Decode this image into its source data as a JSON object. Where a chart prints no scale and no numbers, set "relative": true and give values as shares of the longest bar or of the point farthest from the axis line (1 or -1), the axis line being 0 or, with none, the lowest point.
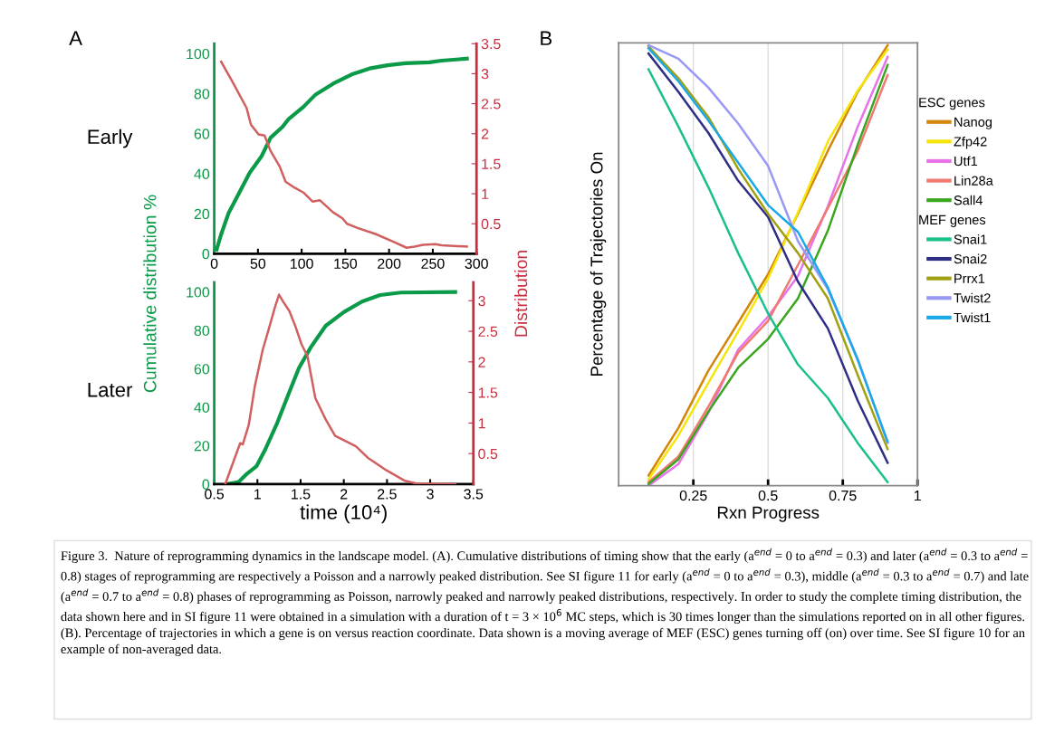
{
  "chart_data": [
    {
      "type": "line",
      "ylabel": "Cumulative distribution %",
      "y2label": "Distribution",
      "xlim": [
        0,
        300
      ],
      "xticks": [
        0,
        50,
        100,
        150,
        200,
        250,
        300
      ],
      "ylim": [
        0,
        105
      ],
      "yticks": [
        0,
        20,
        40,
        60,
        80,
        100
      ],
      "y2lim": [
        0,
        3.5
      ],
      "y2ticks": [
        0.5,
        1,
        1.5,
        2,
        2.5,
        3,
        3.5
      ],
      "annotations": [
        "A",
        "Early",
        "Figure 3.  Nature of reprogramming dynamics in the landscape model. (A). Cumulative distributions of timing show that the early (a$^{end}$ = 0 to a$^{end}$ = 0.3) and later (a$^{end}$ = 0.3 to a$^{end}$ = 0.8) stages of reprogramming are respectively a Poisson and a narrowly peaked distribution. See SI figure 11 for early (a$^{end}$ = 0 to a$^{end}$ = 0.3), middle (a$^{end}$ = 0.3 to a$^{end}$ = 0.7) and late (a$^{end}$ = 0.7 to a$^{end}$ = 0.8) phases of reprogramming as Poisson, narrowly peaked and narrowly peaked distributions, respectively. In order to study the complete timing distribution, the data shown here and in SI figure 11 were obtained in a simulation with a duration of t = 3 × 10$^{6}$ MC steps, which is 30 times longer than the simulations reported on in all other figures. (B). Percentage of trajectories in which a gene is on versus reaction coordinate. Data shown is a moving average of MEF (ESC) genes turning off (on) over time. See SI figure 10 for an example of non-averaged data."
      ],
      "series": [
        {
          "color": "#0a9a48",
          "x": [
            2.7,
            7.9,
            16.5,
            26.7,
            40.5,
            54.2,
            64.5,
            78,
            85,
            102,
            116,
            136,
            157,
            177.6,
            198,
            218.7,
            246,
            260,
            289
          ],
          "values": [
            2,
            9.7,
            20.4,
            28.9,
            40.4,
            48.8,
            58,
            63.4,
            67.3,
            73.4,
            79.6,
            85,
            89.6,
            92.6,
            94.2,
            95.2,
            95.7,
            96.5,
            97.5
          ]
        },
        {
          "color": "#d0605f",
          "axis": "y2",
          "x": [
            7.9,
            19.9,
            37,
            42,
            50.7,
            57.6,
            64.5,
            74.7,
            81.6,
            92,
            102,
            112.4,
            121,
            136,
            146.7,
            151.9,
            163.9,
            184.4,
            205,
            220,
            229,
            239,
            253,
            260,
            289
          ],
          "values": [
            3.2,
            2.89,
            2.43,
            2.15,
            1.99,
            1.97,
            1.71,
            1.46,
            1.2,
            1.1,
            1.02,
            0.87,
            0.89,
            0.69,
            0.59,
            0.5,
            0.43,
            0.33,
            0.2,
            0.1,
            0.12,
            0.15,
            0.16,
            0.14,
            0.12
          ]
        }
      ]
    },
    {
      "type": "line",
      "xlabel": "time (10⁴)",
      "xlim": [
        0.5,
        3.5
      ],
      "xticks": [
        0.5,
        1,
        1.5,
        2,
        2.5,
        3,
        3.5
      ],
      "ylim": [
        0,
        105
      ],
      "yticks": [
        0,
        20,
        40,
        60,
        80,
        100
      ],
      "y2lim": [
        0,
        3.3
      ],
      "y2ticks": [
        0.5,
        1,
        1.5,
        2,
        2.5,
        3
      ],
      "annotations": [
        "Later"
      ],
      "series": [
        {
          "color": "#0a9a48",
          "x": [
            0.64,
            0.78,
            0.88,
            0.99,
            1.09,
            1.23,
            1.37,
            1.48,
            1.62,
            1.79,
            2.0,
            2.21,
            2.42,
            2.66,
            3.29
          ],
          "values": [
            0,
            1.1,
            5.5,
            9.4,
            18,
            32,
            48,
            60.4,
            71.4,
            82.4,
            89.5,
            95,
            98.4,
            99.7,
            100
          ]
        },
        {
          "color": "#d0605f",
          "axis": "y2",
          "x": [
            0.63,
            0.8,
            0.83,
            0.9,
            0.97,
            1.06,
            1.13,
            1.2,
            1.25,
            1.3,
            1.37,
            1.44,
            1.51,
            1.58,
            1.67,
            1.79,
            1.9,
            2.0,
            2.14,
            2.28,
            2.49,
            2.7,
            2.84,
            3.29
          ],
          "values": [
            0.01,
            0.67,
            0.65,
            0.97,
            1.6,
            2.19,
            2.53,
            2.88,
            3.1,
            2.98,
            2.83,
            2.58,
            2.29,
            2.09,
            1.41,
            1.06,
            0.79,
            0.72,
            0.62,
            0.43,
            0.23,
            0.06,
            0.01,
            0
          ]
        }
      ]
    },
    {
      "type": "line",
      "relative": true,
      "xlabel": "Rxn Progress",
      "ylabel": "Percentage of Trajectories On",
      "xlim": [
        0,
        1
      ],
      "xticks": [
        0.25,
        0.5,
        0.75,
        1
      ],
      "grid": "x",
      "legend": "right",
      "annotations": [
        "B",
        "ESC genes",
        "MEF genes"
      ],
      "x": [
        0.1,
        0.2,
        0.3,
        0.4,
        0.5,
        0.6,
        0.7,
        0.8,
        0.9
      ],
      "series": [
        {
          "name": "Nanog",
          "color": "#d4860b",
          "values": [
            0.023,
            0.131,
            0.261,
            0.37,
            0.48,
            0.617,
            0.76,
            0.894,
            1
          ]
        },
        {
          "name": "Zfp42",
          "color": "#f5e50a",
          "values": [
            0.014,
            0.114,
            0.233,
            0.35,
            0.47,
            0.62,
            0.781,
            0.897,
            0.99
          ]
        },
        {
          "name": "Utf1",
          "color": "#e872e8",
          "values": [
            0,
            0.049,
            0.165,
            0.309,
            0.384,
            0.476,
            0.634,
            0.815,
            0.973
          ]
        },
        {
          "name": "Lin28a",
          "color": "#f07a70",
          "values": [
            0.008,
            0.066,
            0.179,
            0.302,
            0.374,
            0.501,
            0.63,
            0.76,
            0.932
          ]
        },
        {
          "name": "Sall4",
          "color": "#3aa51e",
          "values": [
            0.004,
            0.06,
            0.168,
            0.268,
            0.333,
            0.425,
            0.579,
            0.774,
            0.955
          ]
        },
        {
          "name": "Snai1",
          "color": "#19c08a",
          "values": [
            0.945,
            0.815,
            0.678,
            0.528,
            0.391,
            0.275,
            0.199,
            0.097,
            0.008
          ]
        },
        {
          "name": "Snai2",
          "color": "#2e2e86",
          "values": [
            0.981,
            0.894,
            0.801,
            0.692,
            0.61,
            0.463,
            0.357,
            0.193,
            0.052
          ]
        },
        {
          "name": "Prrx1",
          "color": "#a0a012",
          "values": [
            0.997,
            0.925,
            0.837,
            0.719,
            0.617,
            0.528,
            0.425,
            0.251,
            0.083
          ]
        },
        {
          "name": "Twist2",
          "color": "#9898f5",
          "values": [
            1,
            0.969,
            0.904,
            0.822,
            0.726,
            0.555,
            0.446,
            0.288,
            0.097
          ]
        },
        {
          "name": "Twist1",
          "color": "#1aa8e8",
          "values": [
            0.993,
            0.918,
            0.829,
            0.733,
            0.637,
            0.576,
            0.45,
            0.285,
            0.1
          ]
        }
      ]
    }
  ]
}
